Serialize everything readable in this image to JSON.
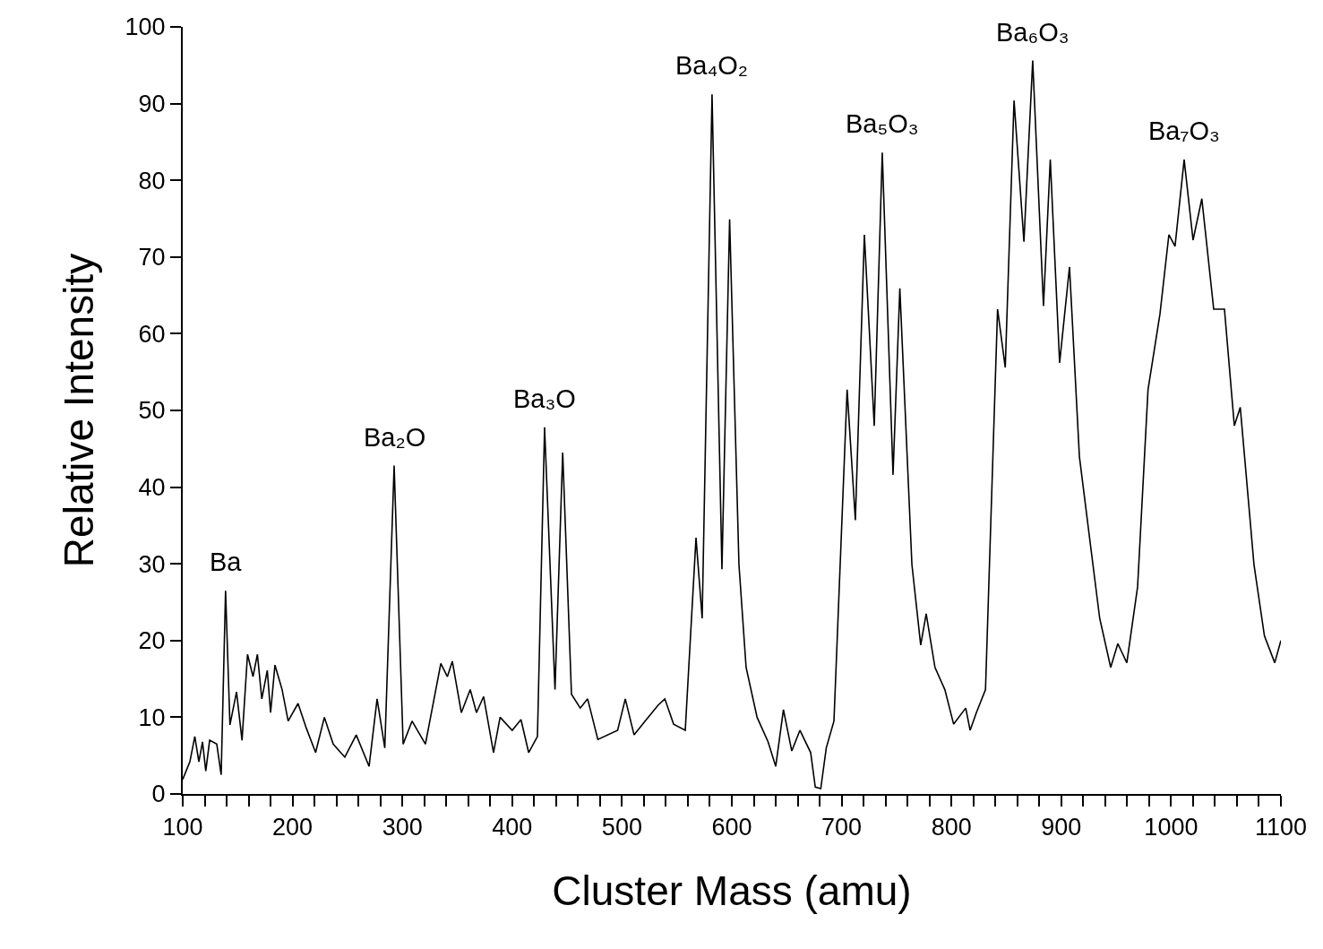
{
  "chart_data": {
    "type": "line",
    "xlabel": "Cluster Mass (amu)",
    "ylabel": "Relative Intensity",
    "x": [
      100,
      106.5,
      111,
      114.7,
      118,
      121,
      124.5,
      131,
      135,
      139,
      143,
      149,
      154,
      159,
      164,
      168,
      172,
      177,
      180,
      184,
      190.5,
      196,
      205,
      212.5,
      221,
      229,
      237,
      247.6,
      258,
      269.7,
      277,
      284,
      292.5,
      300.7,
      308.8,
      321,
      335,
      341,
      345.5,
      353.7,
      361.8,
      367.5,
      374,
      383,
      389,
      400,
      408,
      415,
      423,
      429.5,
      439,
      446,
      454,
      462,
      468.7,
      478,
      496,
      503,
      511,
      521,
      533,
      539,
      547,
      557.6,
      567.4,
      573,
      582,
      591,
      598,
      606.5,
      613,
      623,
      633,
      640,
      647,
      654.6,
      662,
      671.8,
      676,
      681,
      686,
      693,
      705,
      712.5,
      720.7,
      729.7,
      737,
      746.8,
      753,
      764,
      772,
      777,
      785,
      794,
      802,
      813,
      817,
      822.7,
      831,
      842,
      849,
      857,
      866,
      874,
      883.8,
      890,
      898.5,
      907.5,
      916.5,
      927,
      935,
      945,
      951.5,
      959.7,
      969.5,
      979,
      989.9,
      998,
      1003.6,
      1011.9,
      1020,
      1028,
      1038.8,
      1048.6,
      1057.6,
      1063,
      1075.5,
      1085,
      1094.4,
      1100
    ],
    "series": [
      {
        "color": "#000000",
        "values": [
          1.9,
          4.2,
          7.5,
          4.2,
          6.8,
          3,
          7,
          6.5,
          2.5,
          26.5,
          9,
          13.3,
          7,
          18.2,
          15.3,
          18.2,
          12.4,
          16.1,
          10.6,
          16.8,
          13.6,
          9.5,
          11.8,
          8.6,
          5.4,
          10,
          6.5,
          4.8,
          7.7,
          3.6,
          12.4,
          6,
          42.8,
          6.5,
          9.5,
          6.5,
          17,
          15.3,
          17.3,
          10.6,
          13.6,
          10.6,
          12.7,
          5.4,
          10,
          8.3,
          9.7,
          5.4,
          7.5,
          47.8,
          13.6,
          44.5,
          13,
          11.2,
          12.4,
          7.1,
          8.3,
          12.4,
          7.7,
          9.5,
          11.6,
          12.4,
          9.1,
          8.3,
          33.4,
          22.9,
          91.2,
          29.3,
          74.9,
          29.9,
          16.5,
          10,
          6.8,
          3.6,
          11,
          5.6,
          8.3,
          5.4,
          0.9,
          0.7,
          6,
          9.5,
          52.7,
          35.7,
          72.9,
          48,
          83.6,
          41.6,
          65.9,
          29.9,
          19.4,
          23.5,
          16.5,
          13.6,
          9.1,
          11.2,
          8.3,
          10.6,
          13.6,
          63.2,
          55.6,
          90.4,
          72,
          95.6,
          63.6,
          82.7,
          56.2,
          68.7,
          44,
          32,
          22.9,
          16.5,
          19.6,
          17.1,
          27,
          52.7,
          62.6,
          72.9,
          71.4,
          82.7,
          72.2,
          77.6,
          63.2,
          63.2,
          48,
          50.4,
          29.9,
          20.6,
          17.1,
          20
        ]
      }
    ],
    "xlim": [
      100,
      1100
    ],
    "xticks": [
      100,
      {
        "value": 120,
        "label": null
      },
      {
        "value": 140,
        "label": null
      },
      {
        "value": 160,
        "label": null
      },
      {
        "value": 180,
        "label": null
      },
      200,
      {
        "value": 220,
        "label": null
      },
      {
        "value": 240,
        "label": null
      },
      {
        "value": 260,
        "label": null
      },
      {
        "value": 280,
        "label": null
      },
      300,
      {
        "value": 320,
        "label": null
      },
      {
        "value": 340,
        "label": null
      },
      {
        "value": 360,
        "label": null
      },
      {
        "value": 380,
        "label": null
      },
      400,
      {
        "value": 420,
        "label": null
      },
      {
        "value": 440,
        "label": null
      },
      {
        "value": 460,
        "label": null
      },
      {
        "value": 480,
        "label": null
      },
      500,
      {
        "value": 520,
        "label": null
      },
      {
        "value": 540,
        "label": null
      },
      {
        "value": 560,
        "label": null
      },
      {
        "value": 580,
        "label": null
      },
      600,
      {
        "value": 620,
        "label": null
      },
      {
        "value": 640,
        "label": null
      },
      {
        "value": 660,
        "label": null
      },
      {
        "value": 680,
        "label": null
      },
      700,
      {
        "value": 720,
        "label": null
      },
      {
        "value": 740,
        "label": null
      },
      {
        "value": 760,
        "label": null
      },
      {
        "value": 780,
        "label": null
      },
      800,
      {
        "value": 820,
        "label": null
      },
      {
        "value": 840,
        "label": null
      },
      {
        "value": 860,
        "label": null
      },
      {
        "value": 880,
        "label": null
      },
      900,
      {
        "value": 920,
        "label": null
      },
      {
        "value": 940,
        "label": null
      },
      {
        "value": 960,
        "label": null
      },
      {
        "value": 980,
        "label": null
      },
      1000,
      {
        "value": 1020,
        "label": null
      },
      {
        "value": 1040,
        "label": null
      },
      {
        "value": 1060,
        "label": null
      },
      {
        "value": 1080,
        "label": null
      },
      1100
    ],
    "ylim": [
      0,
      100
    ],
    "yticks": [
      0,
      10,
      20,
      30,
      40,
      50,
      60,
      70,
      80,
      90,
      100
    ],
    "grid": false,
    "marker": "none",
    "line_style": "solid",
    "annotations": [
      {
        "text": "Ba",
        "x": 139,
        "y": 26.5
      },
      {
        "text": "Ba₂O",
        "x": 292.5,
        "y": 42.8
      },
      {
        "text": "Ba₃O",
        "x": 429.5,
        "y": 47.8
      },
      {
        "text": "Ba₄O₂",
        "x": 582,
        "y": 91.2
      },
      {
        "text": "Ba₅O₃",
        "x": 737,
        "y": 83.6
      },
      {
        "text": "Ba₆O₃",
        "x": 874,
        "y": 95.6
      },
      {
        "text": "Ba₇O₃",
        "x": 1011.9,
        "y": 82.7
      }
    ]
  }
}
